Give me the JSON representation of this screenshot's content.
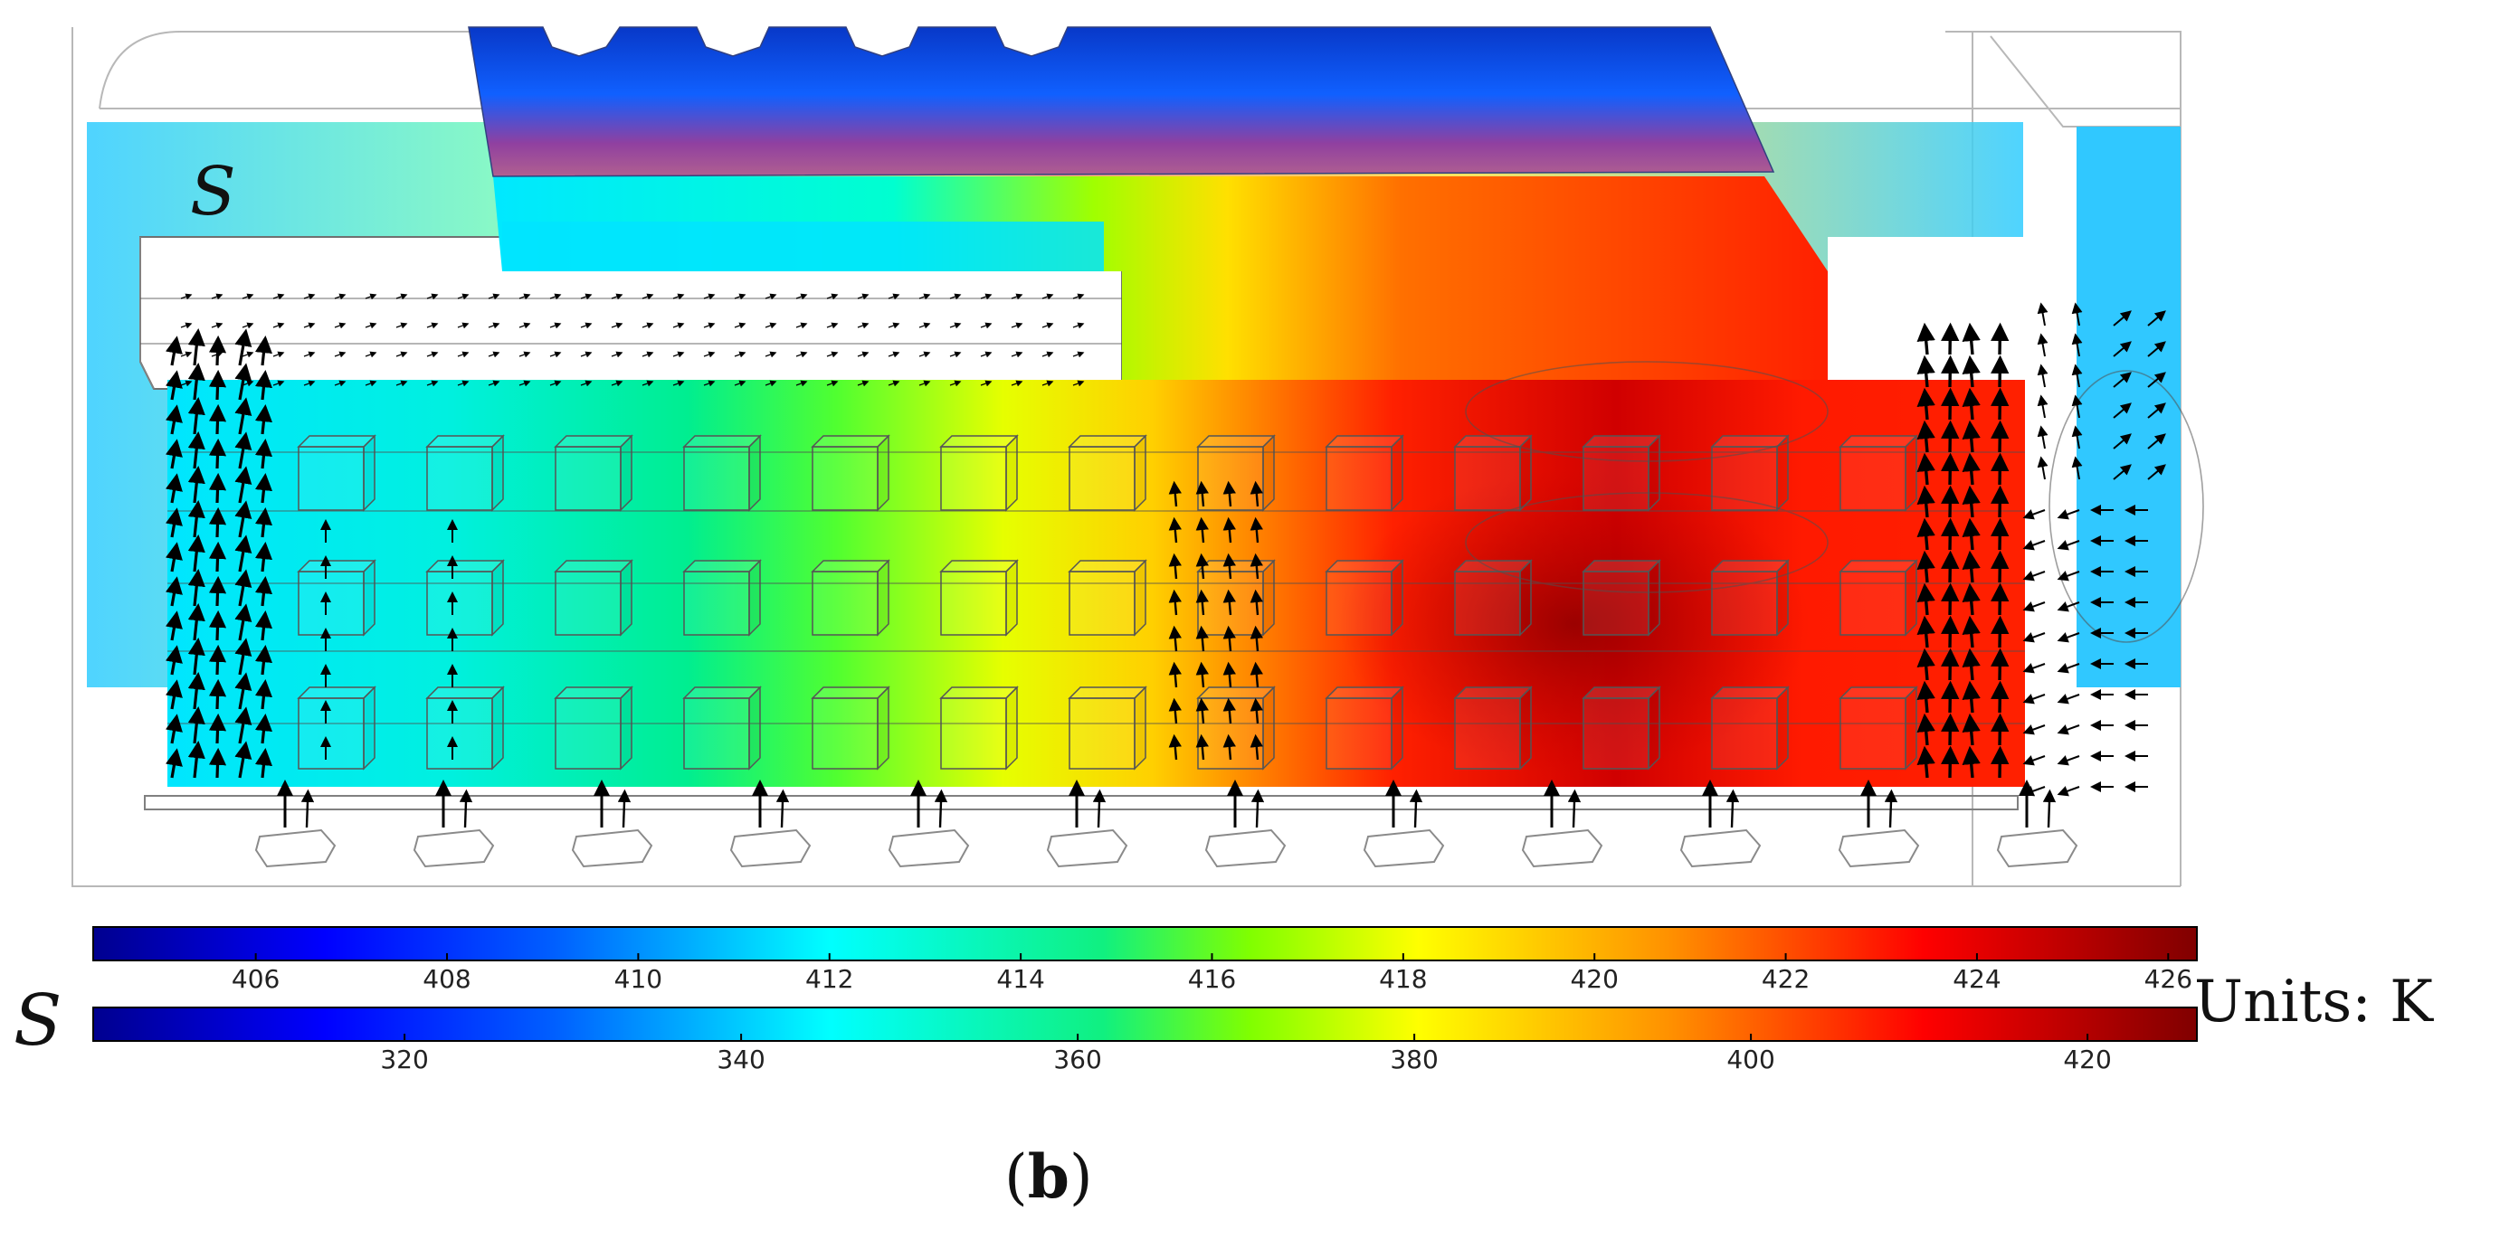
{
  "solid_label": "S",
  "air_label": "S",
  "units_label": "Units: K",
  "caption": {
    "open": "(",
    "letter": "b",
    "close": ")"
  },
  "colorbars": [
    {
      "name": "upper",
      "min": 404.3,
      "max": 426.3,
      "ticks": [
        406,
        408,
        410,
        412,
        414,
        416,
        418,
        420,
        422,
        424,
        426
      ]
    },
    {
      "name": "lower",
      "min": 301.5,
      "max": 426.5,
      "ticks": [
        320,
        340,
        360,
        380,
        400,
        420
      ]
    }
  ],
  "colormap": [
    "#00008f",
    "#0000ff",
    "#0080ff",
    "#00ffff",
    "#00ff80",
    "#80ff00",
    "#ffff00",
    "#ff8000",
    "#ff0000",
    "#800000"
  ]
}
